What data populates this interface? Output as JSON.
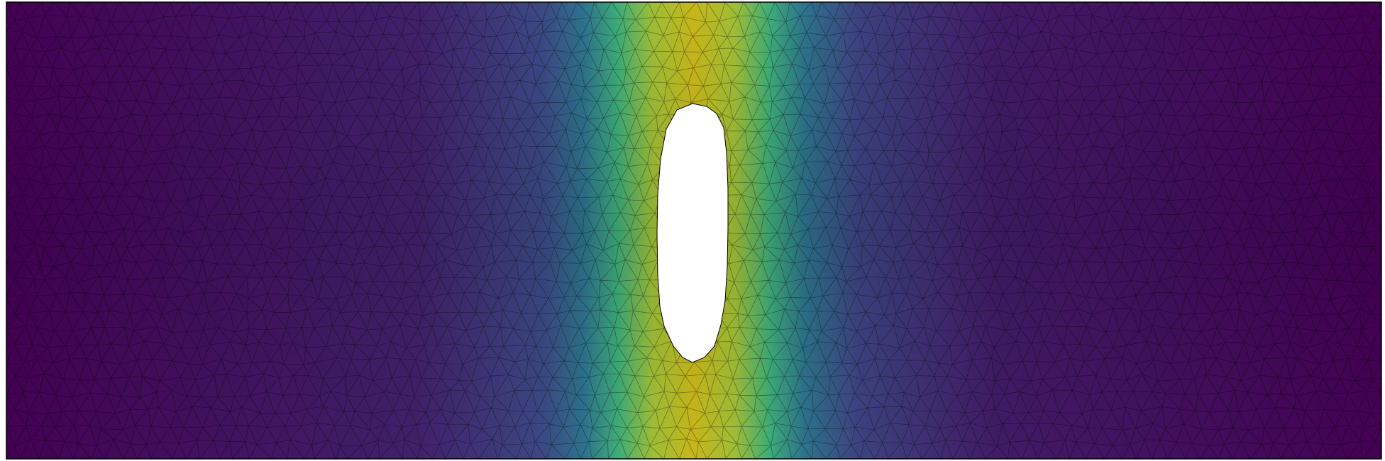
{
  "figure": {
    "kind": "finite-element-mesh",
    "colormap": "viridis",
    "colormap_stops": [
      "#440154",
      "#3b528b",
      "#21918c",
      "#5ec962",
      "#c8b71a"
    ],
    "background": "#ffffff",
    "mesh_line_color": "#000000",
    "domain_shape": "rectangle",
    "hole_shape": "rounded vertical slot",
    "hole_fill": "#ffffff",
    "field_description": "",
    "text_labels": []
  }
}
